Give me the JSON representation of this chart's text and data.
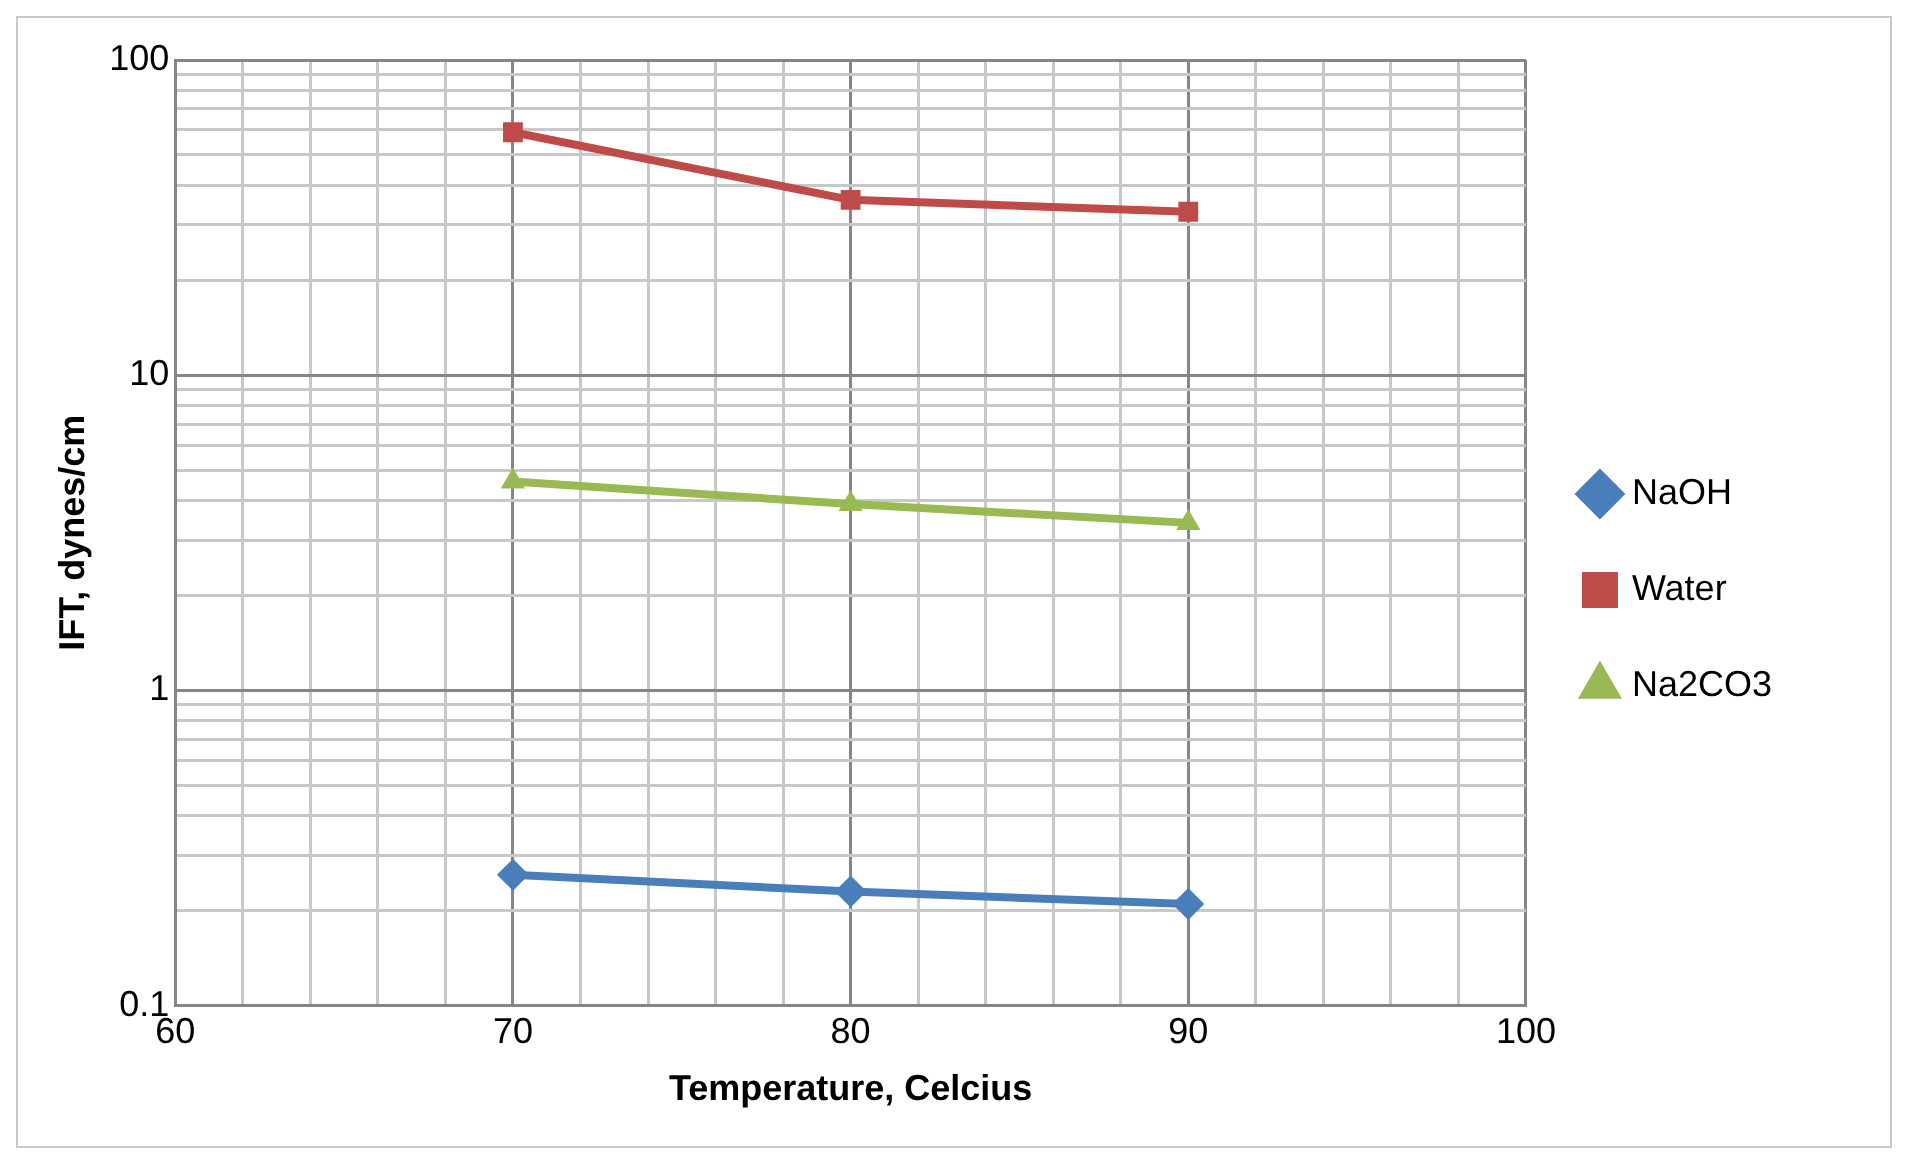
{
  "chart_data": {
    "type": "line",
    "xlabel": "Temperature, Celcius",
    "ylabel": "IFT, dynes/cm",
    "x": [
      70,
      80,
      90
    ],
    "series": [
      {
        "name": "NaOH",
        "color": "#4a7ebb",
        "marker": "diamond",
        "values": [
          0.26,
          0.23,
          0.21
        ]
      },
      {
        "name": "Water",
        "color": "#be4b48",
        "marker": "square",
        "values": [
          59,
          36,
          33
        ]
      },
      {
        "name": "Na2CO3",
        "color": "#98b954",
        "marker": "triangle",
        "values": [
          4.6,
          3.9,
          3.4
        ]
      }
    ],
    "xlim": [
      60,
      100
    ],
    "xticks": [
      60,
      {
        "value": 62,
        "label": null
      },
      {
        "value": 64,
        "label": null
      },
      {
        "value": 66,
        "label": null
      },
      {
        "value": 68,
        "label": null
      },
      70,
      {
        "value": 72,
        "label": null
      },
      {
        "value": 74,
        "label": null
      },
      {
        "value": 76,
        "label": null
      },
      {
        "value": 78,
        "label": null
      },
      80,
      {
        "value": 82,
        "label": null
      },
      {
        "value": 84,
        "label": null
      },
      {
        "value": 86,
        "label": null
      },
      {
        "value": 88,
        "label": null
      },
      90,
      {
        "value": 92,
        "label": null
      },
      {
        "value": 94,
        "label": null
      },
      {
        "value": 96,
        "label": null
      },
      {
        "value": 98,
        "label": null
      },
      100
    ],
    "ylim": [
      0.1,
      100
    ],
    "yticks": [
      0.1,
      {
        "value": 0.2,
        "label": null
      },
      {
        "value": 0.3,
        "label": null
      },
      {
        "value": 0.4,
        "label": null
      },
      {
        "value": 0.5,
        "label": null
      },
      {
        "value": 0.6,
        "label": null
      },
      {
        "value": 0.7,
        "label": null
      },
      {
        "value": 0.8,
        "label": null
      },
      {
        "value": 0.9,
        "label": null
      },
      1,
      {
        "value": 2,
        "label": null
      },
      {
        "value": 3,
        "label": null
      },
      {
        "value": 4,
        "label": null
      },
      {
        "value": 5,
        "label": null
      },
      {
        "value": 6,
        "label": null
      },
      {
        "value": 7,
        "label": null
      },
      {
        "value": 8,
        "label": null
      },
      {
        "value": 9,
        "label": null
      },
      10,
      {
        "value": 20,
        "label": null
      },
      {
        "value": 30,
        "label": null
      },
      {
        "value": 40,
        "label": null
      },
      {
        "value": 50,
        "label": null
      },
      {
        "value": 60,
        "label": null
      },
      {
        "value": 70,
        "label": null
      },
      {
        "value": 80,
        "label": null
      },
      {
        "value": 90,
        "label": null
      },
      100
    ],
    "log": "y",
    "grid": true,
    "legend": "right",
    "line_style": "solid"
  }
}
